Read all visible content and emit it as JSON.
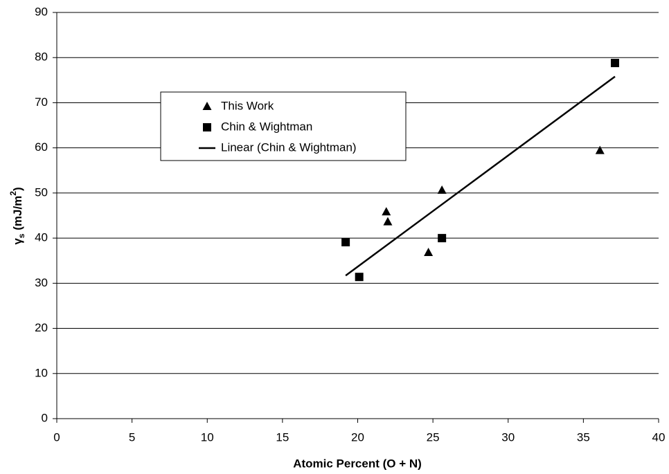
{
  "chart_data": {
    "type": "scatter",
    "x_label": "Atomic Percent (O + N)",
    "y_label_parts": [
      "γ",
      "s",
      " (mJ/m",
      "2",
      ")"
    ],
    "xlim": [
      0,
      40
    ],
    "xticks": [
      0,
      5,
      10,
      15,
      20,
      25,
      30,
      35,
      40
    ],
    "ylim": [
      0,
      90
    ],
    "yticks": [
      0,
      10,
      20,
      30,
      40,
      50,
      60,
      70,
      80,
      90
    ],
    "grid": "horizontal",
    "legend": "upper left",
    "series": [
      {
        "name": "This Work",
        "color": "#000000",
        "marker": "triangle",
        "x": [
          21.9,
          22.0,
          25.6,
          24.7,
          36.1
        ],
        "values": [
          45.8,
          43.6,
          50.6,
          36.8,
          59.4
        ]
      },
      {
        "name": "Chin & Wightman",
        "color": "#000000",
        "marker": "square",
        "x": [
          19.2,
          20.1,
          25.6,
          37.1
        ],
        "values": [
          39.1,
          31.4,
          40.0,
          78.8
        ]
      },
      {
        "name": "Linear (Chin & Wightman)",
        "color": "#000000",
        "marker": "line",
        "x": [
          19.2,
          37.1
        ],
        "values": [
          31.7,
          75.8
        ]
      }
    ]
  }
}
